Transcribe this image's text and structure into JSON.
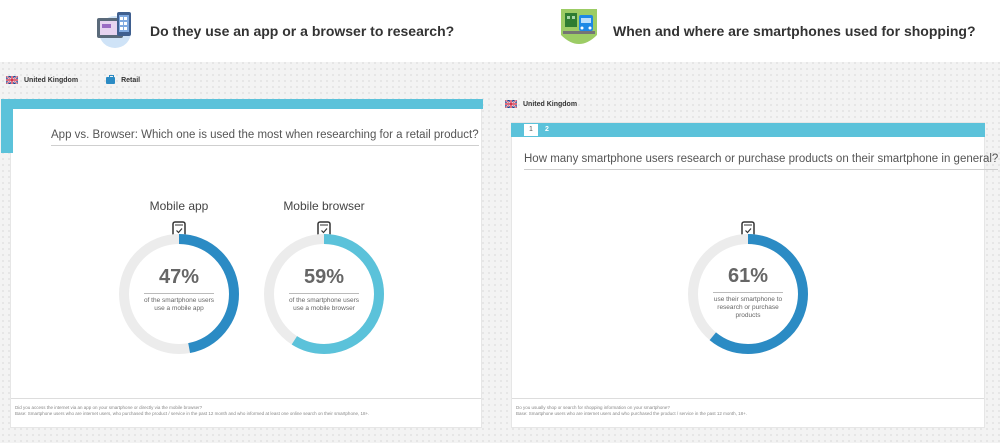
{
  "header_left": {
    "title": "Do they use an app or a browser to research?",
    "icon": "devices-icon"
  },
  "header_right": {
    "title": "When and where are smartphones used for shopping?",
    "icon": "store-transit-icon"
  },
  "filters_left": {
    "country": "United Kingdom",
    "category": "Retail"
  },
  "filters_right": {
    "country": "United Kingdom"
  },
  "card_left": {
    "question": "App vs. Browser: Which one is used the most when researching for a retail product?",
    "metrics": [
      {
        "label": "Mobile app",
        "value": "47%",
        "fraction": 0.47,
        "desc_line1": "of the smartphone users",
        "desc_line2": "use a mobile app",
        "color": "#2b8bc4"
      },
      {
        "label": "Mobile browser",
        "value": "59%",
        "fraction": 0.59,
        "desc_line1": "of the smartphone users",
        "desc_line2": "use a mobile browser",
        "color": "#5bc2da"
      }
    ],
    "footnote_line1": "Did you access the internet via an app on your smartphone or directly via the mobile browser?",
    "footnote_line2": "Base: Smartphone users who are internet users, who purchased the product / service in the past 12 month and who informed at least one online search on their smartphone, 18+."
  },
  "card_right": {
    "tabs": [
      "1",
      "2"
    ],
    "question": "How many smartphone users research or purchase products on their smartphone in general?",
    "metric": {
      "value": "61%",
      "fraction": 0.61,
      "desc_line1": "use their smartphone to",
      "desc_line2": "research or purchase",
      "desc_line3": "products",
      "color": "#2b8bc4"
    },
    "footnote_line1": "Do you usually shop or search for shopping information on your smartphone?",
    "footnote_line2": "Base: Smartphone users who are internet users and who purchased the product / service in the past 12 month, 18+."
  },
  "colors": {
    "accent": "#5bc2da",
    "primary_ring": "#2b8bc4",
    "track": "#ececec"
  }
}
